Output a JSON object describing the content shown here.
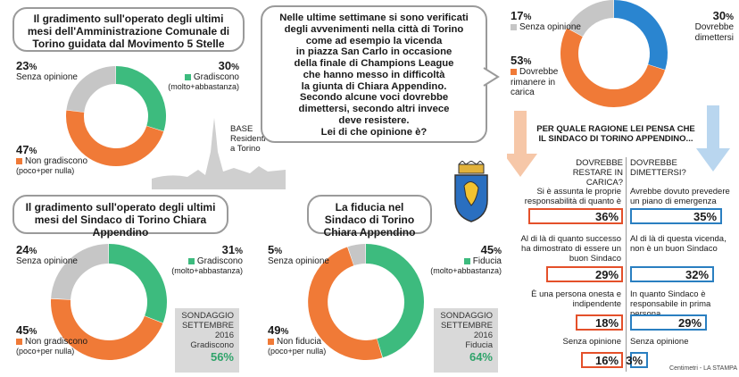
{
  "colors": {
    "green": "#3dbb7e",
    "orange": "#f07a37",
    "gray": "#c6c6c6",
    "blue": "#2a85d0",
    "red": "#e4502a"
  },
  "chart_data": [
    {
      "type": "pie",
      "title": "Il gradimento sull'operato degli ultimi mesi dell'Amministrazione Comunale di Torino guidata dal Movimento 5 Stelle",
      "slices": [
        {
          "name": "Gradiscono",
          "note": "(molto+abbastanza)",
          "value": 30
        },
        {
          "name": "Non gradiscono",
          "note": "(poco+per nulla)",
          "value": 47
        },
        {
          "name": "Senza opinione",
          "note": "",
          "value": 23
        }
      ],
      "base_label": [
        "BASE",
        "Residenti",
        "a Torino"
      ]
    },
    {
      "type": "pie",
      "title": "Il gradimento sull'operato degli ultimi mesi del Sindaco di Torino Chiara Appendino",
      "slices": [
        {
          "name": "Gradiscono",
          "note": "(molto+abbastanza)",
          "value": 31
        },
        {
          "name": "Non gradiscono",
          "note": "(poco+per nulla)",
          "value": 45
        },
        {
          "name": "Senza opinione",
          "note": "",
          "value": 24
        }
      ],
      "comparison": {
        "label": "Gradiscono",
        "value": "56%",
        "source": [
          "SONDAGGIO",
          "SETTEMBRE",
          "2016"
        ]
      }
    },
    {
      "type": "pie",
      "title": "La fiducia nel Sindaco di Torino Chiara Appendino",
      "slices": [
        {
          "name": "Fiducia",
          "note": "(molto+abbastanza)",
          "value": 45
        },
        {
          "name": "Non fiducia",
          "note": "(poco+per nulla)",
          "value": 49
        },
        {
          "name": "Senza opinione",
          "note": "",
          "value": 5
        }
      ],
      "comparison": {
        "label": "Fiducia",
        "value": "64%",
        "source": [
          "SONDAGGIO",
          "SETTEMBRE",
          "2016"
        ]
      }
    },
    {
      "type": "pie",
      "title": "Nelle ultime settimane si sono verificati degli avvenimenti nella città di Torino come ad esempio la vicenda in piazza San Carlo in occasione della finale di Champions League che hanno messo in difficoltà la giunta di Chiara Appendino. Secondo alcune voci dovrebbe dimettersi, secondo altri invece deve resistere. Lei di che opinione è?",
      "slices": [
        {
          "name": "Dovrebbe dimettersi",
          "value": 30
        },
        {
          "name": "Dovrebbe rimanere in carica",
          "value": 53
        },
        {
          "name": "Senza opinione",
          "value": 17
        }
      ]
    },
    {
      "type": "bar",
      "title": "PER QUALE RAGIONE LEI PENSA CHE IL SINDACO DI TORINO APPENDINO...",
      "series": [
        {
          "name": "DOVREBBE RESTARE IN CARICA?",
          "categories": [
            "Si è assunta le proprie responsabilità di quanto è successo",
            "Al di là di quanto successo ha dimostrato di essere un buon Sindaco",
            "È una persona onesta e indipendente",
            "Senza opinione"
          ],
          "values": [
            36,
            29,
            18,
            16
          ]
        },
        {
          "name": "DOVREBBE DIMETTERSI?",
          "categories": [
            "Avrebbe dovuto prevedere un piano di emergenza",
            "Al di là di questa vicenda, non è un buon Sindaco",
            "In quanto Sindaco è responsabile in prima persona",
            "Senza opinione"
          ],
          "values": [
            35,
            32,
            29,
            3
          ]
        }
      ]
    }
  ],
  "texts": {
    "q1_title": "Il gradimento sull'operato degli ultimi mesi dell'Amministrazione Comunale di Torino guidata dal Movimento 5 Stelle",
    "q2_title": "Il gradimento sull'operato degli ultimi mesi del Sindaco di Torino Chiara Appendino",
    "q3_title": "La fiducia nel Sindaco di Torino Chiara Appendino",
    "question_lines": [
      "Nelle ultime settimane si sono verificati",
      "degli avvenimenti nella città di Torino",
      "come ad esempio la vicenda",
      "in piazza San Carlo in occasione",
      "della finale di Champions League",
      "che hanno messo in difficoltà",
      "la giunta di Chiara Appendino.",
      "Secondo alcune voci dovrebbe",
      "dimettersi, secondo altri invece",
      "deve resistere.",
      "Lei di che opinione è?"
    ],
    "reason_title": "PER QUALE RAGIONE LEI PENSA CHE IL SINDACO DI TORINO APPENDINO...",
    "credit": "Centimetri - LA STAMPA",
    "pct_sign": "%"
  }
}
